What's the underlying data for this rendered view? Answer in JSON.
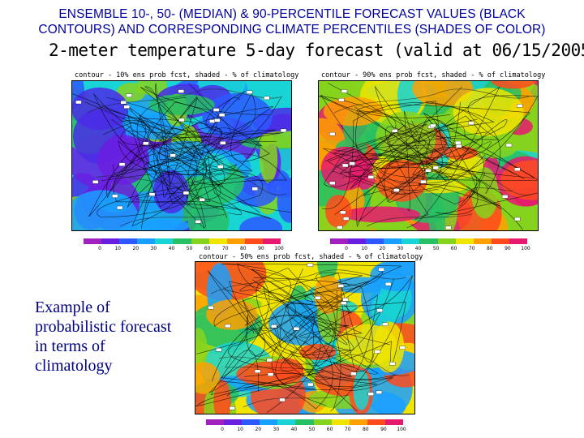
{
  "heading_line1": "ENSEMBLE 10-, 50- (MEDIAN) & 90-PERCENTILE FORECAST VALUES (BLACK",
  "heading_line2": "CONTOURS) AND CORRESPONDING CLIMATE PERCENTILES (SHADES OF COLOR)",
  "subtitle": "2-meter temperature 5-day forecast (valid at 06/15/2005)",
  "panels": [
    {
      "caption": "contour - 10% ens prob fcst, shaded - % of climatology",
      "scheme": "cool"
    },
    {
      "caption": "contour - 90% ens prob fcst, shaded - % of climatology",
      "scheme": "warm"
    },
    {
      "caption": "contour - 50% ens prob fcst, shaded - % of climatology",
      "scheme": "mixed"
    }
  ],
  "colorbar_ticks": [
    "0",
    "10",
    "20",
    "30",
    "40",
    "50",
    "60",
    "70",
    "80",
    "90",
    "100"
  ],
  "colorbar_colors": [
    "#a020c0",
    "#6a1ee0",
    "#2d58ff",
    "#19a0ff",
    "#19d4d4",
    "#27c064",
    "#86d31e",
    "#f0e400",
    "#ffa000",
    "#ff4a1e",
    "#e6196e"
  ],
  "note": "Example of probabilistic forecast in terms of climatology"
}
